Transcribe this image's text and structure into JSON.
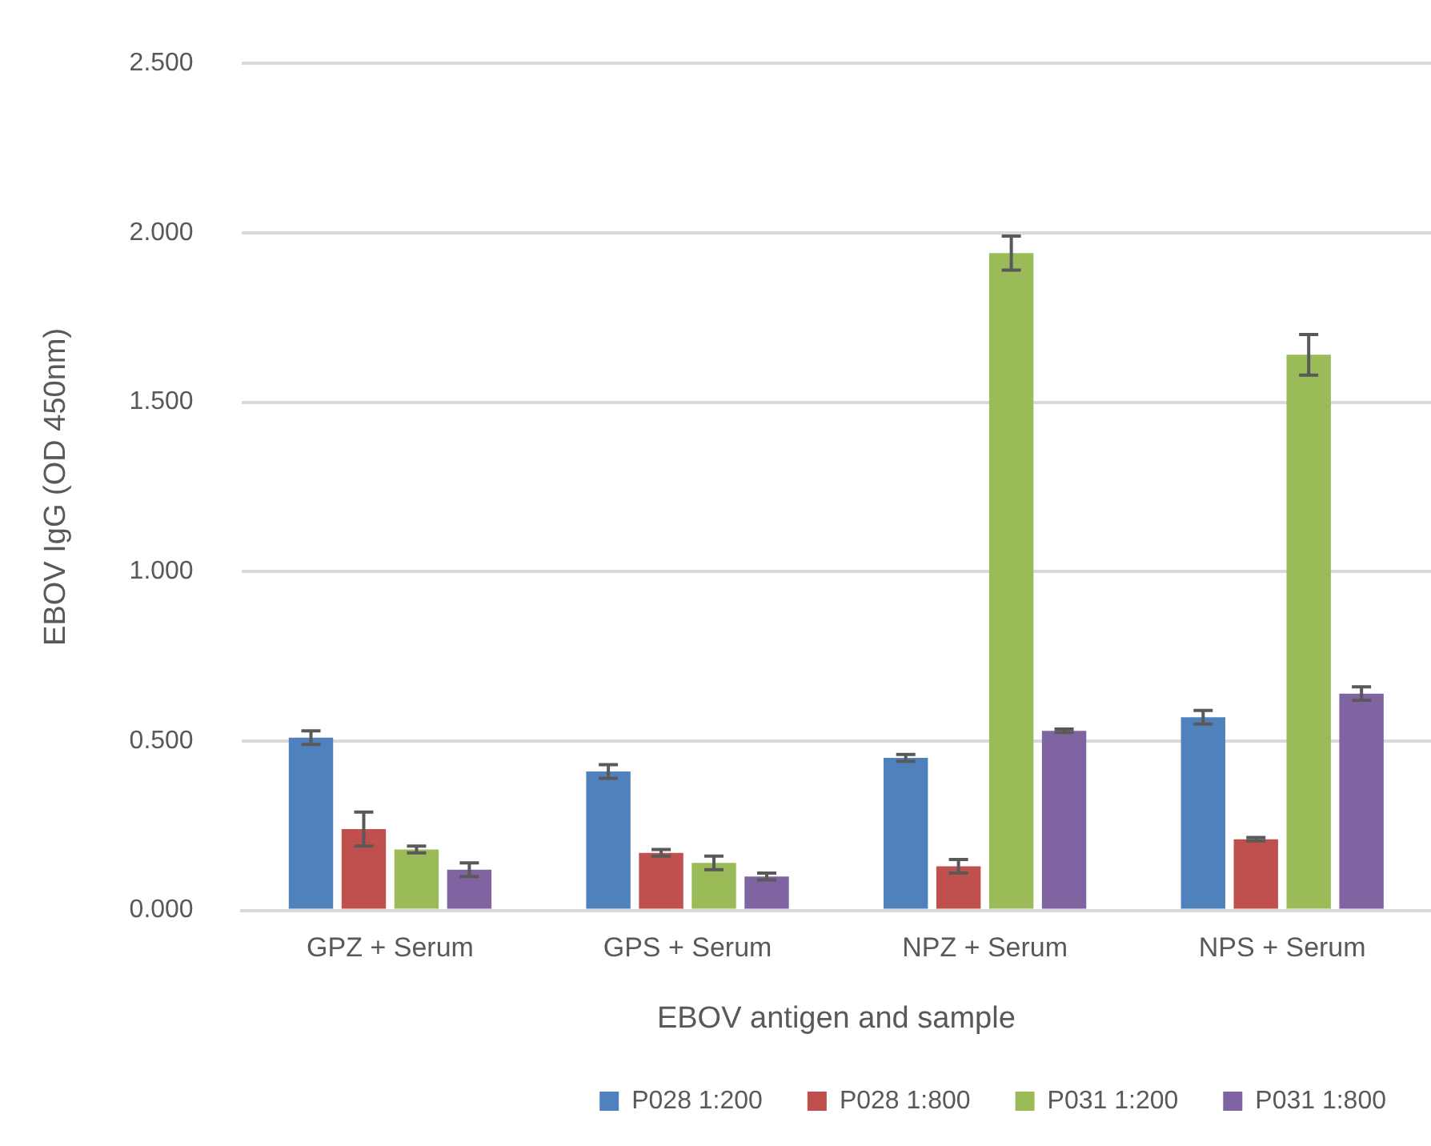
{
  "chart_data": {
    "type": "bar",
    "xlabel": "EBOV antigen and sample",
    "ylabel": "EBOV IgG (OD 450nm)",
    "categories": [
      "GPZ + Serum",
      "GPS + Serum",
      "NPZ + Serum",
      "NPS + Serum"
    ],
    "series": [
      {
        "name": "P028 1:200",
        "color": "#4f81bd",
        "values": [
          0.51,
          0.41,
          0.45,
          0.57
        ],
        "errors": [
          0.02,
          0.02,
          0.01,
          0.02
        ]
      },
      {
        "name": "P028 1:800",
        "color": "#c0504d",
        "values": [
          0.24,
          0.17,
          0.13,
          0.21
        ],
        "errors": [
          0.05,
          0.01,
          0.02,
          0.005
        ]
      },
      {
        "name": "P031 1:200",
        "color": "#9bbb59",
        "values": [
          0.18,
          0.14,
          1.94,
          1.64
        ],
        "errors": [
          0.01,
          0.02,
          0.05,
          0.06
        ]
      },
      {
        "name": "P031 1:800",
        "color": "#8064a2",
        "values": [
          0.12,
          0.1,
          0.53,
          0.64
        ],
        "errors": [
          0.02,
          0.01,
          0.005,
          0.02
        ]
      }
    ],
    "ylim": [
      0,
      2.5
    ],
    "yticks": [
      {
        "value": 0,
        "label": "0.000"
      },
      {
        "value": 0.5,
        "label": "0.500"
      },
      {
        "value": 1,
        "label": "1.000"
      },
      {
        "value": 1.5,
        "label": "1.500"
      },
      {
        "value": 2,
        "label": "2.000"
      },
      {
        "value": 2.5,
        "label": "2.500"
      }
    ],
    "grid": "y",
    "legend": "bottom"
  }
}
